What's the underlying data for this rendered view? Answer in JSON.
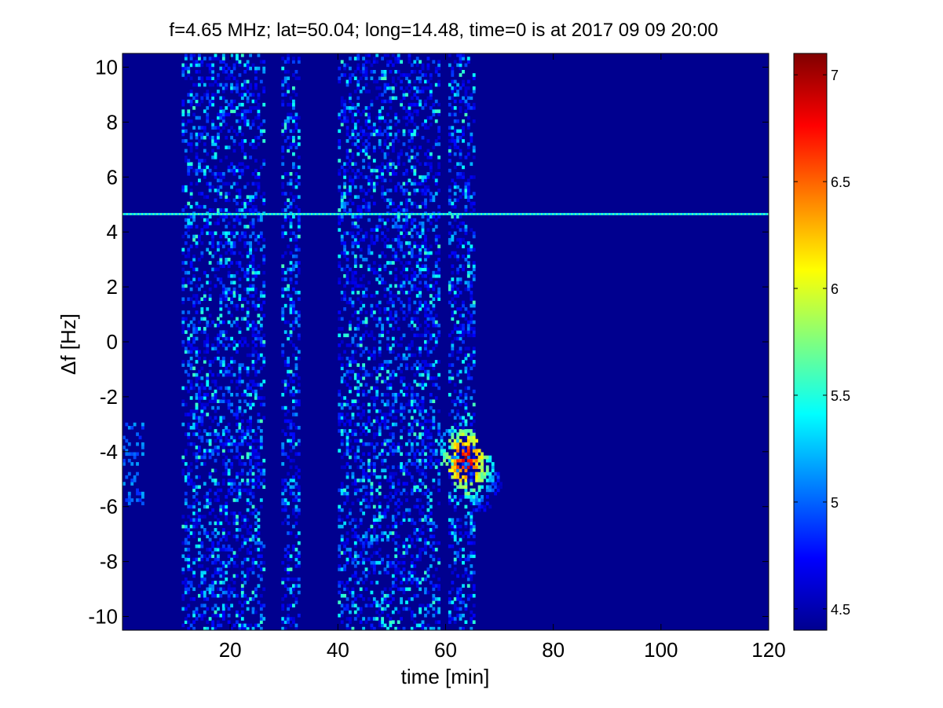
{
  "chart_data": {
    "type": "heatmap",
    "title": "f=4.65 MHz;  lat=50.04; long=14.48, time=0 is at 2017 09 09 20:00",
    "xlabel": "time [min]",
    "ylabel": "Δf [Hz]",
    "xlim": [
      0,
      120
    ],
    "ylim": [
      -10.5,
      10.5
    ],
    "xticks": [
      20,
      40,
      60,
      80,
      100,
      120
    ],
    "xtick_labels": [
      "20",
      "40",
      "60",
      "80",
      "100",
      "120"
    ],
    "yticks": [
      -10,
      -8,
      -6,
      -4,
      -2,
      0,
      2,
      4,
      6,
      8,
      10
    ],
    "ytick_labels": [
      "-10",
      "-8",
      "-6",
      "-4",
      "-2",
      "0",
      "2",
      "4",
      "6",
      "8",
      "10"
    ],
    "colormap": "jet",
    "background_color": "#00008f",
    "colorbar": {
      "clim": [
        4.4,
        7.1
      ],
      "ticks": [
        4.5,
        5,
        5.5,
        6,
        6.5,
        7
      ],
      "tick_labels": [
        "4.5",
        "5",
        "5.5",
        "6",
        "6.5",
        "7"
      ]
    },
    "features": {
      "carrier_line": {
        "df": 4.65,
        "time_start": 0,
        "time_end": 120,
        "level": 5.3
      },
      "noise_bands_min": [
        [
          11,
          13
        ],
        [
          13,
          17.5
        ],
        [
          17.5,
          22
        ],
        [
          22,
          26.5
        ],
        [
          29.5,
          33
        ],
        [
          40,
          43
        ],
        [
          43,
          47.5
        ],
        [
          47.5,
          51.5
        ],
        [
          51.5,
          55
        ],
        [
          55,
          59
        ],
        [
          60.5,
          65.5
        ]
      ],
      "echo_feature": {
        "time_range": [
          59,
          72
        ],
        "df_range": [
          -7,
          -3.3
        ],
        "peak_time": 63.5,
        "peak_df": -4.4,
        "peak_level": 7.0
      }
    }
  }
}
